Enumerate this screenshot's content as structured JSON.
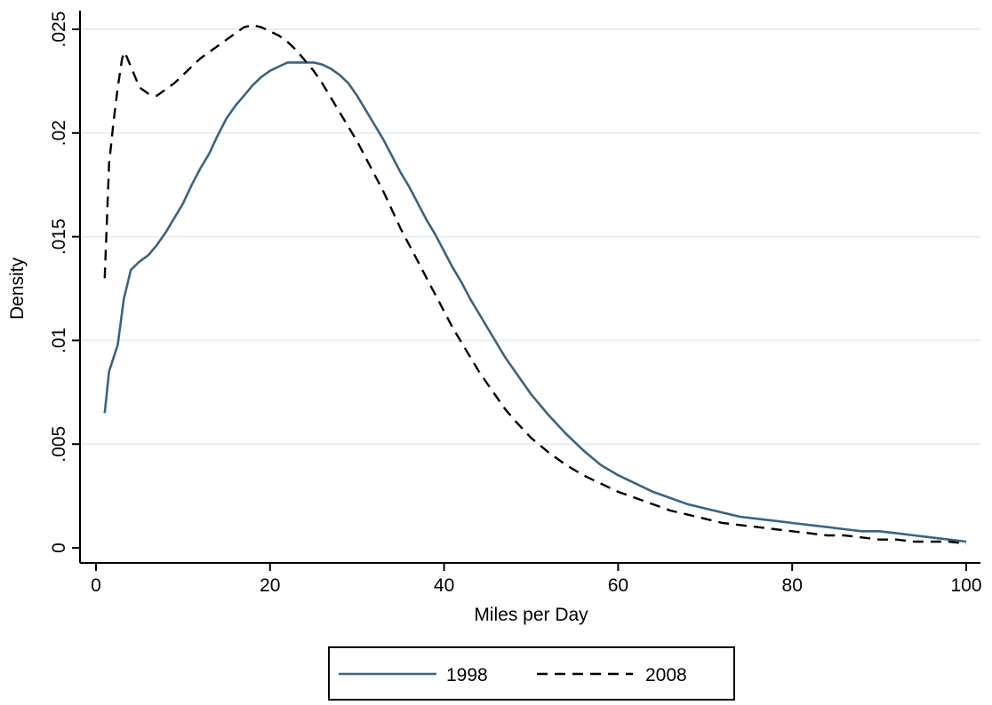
{
  "chart_data": {
    "type": "line",
    "xlabel": "Miles per Day",
    "ylabel": "Density",
    "xlim": [
      0,
      100
    ],
    "ylim": [
      0,
      0.025
    ],
    "x_ticks": [
      0,
      20,
      40,
      60,
      80,
      100
    ],
    "x_tick_labels": [
      "0",
      "20",
      "40",
      "60",
      "80",
      "100"
    ],
    "y_ticks": [
      0,
      0.005,
      0.01,
      0.015,
      0.02,
      0.025
    ],
    "y_tick_labels": [
      "0",
      ".005",
      ".01",
      ".015",
      ".02",
      ".025"
    ],
    "grid": "horizontal",
    "legend_position": "bottom",
    "series": [
      {
        "name": "1998",
        "color": "#3a6384",
        "style": "solid",
        "points": [
          [
            1,
            0.0065
          ],
          [
            1.5,
            0.0085
          ],
          [
            2.5,
            0.0098
          ],
          [
            3.2,
            0.012
          ],
          [
            4,
            0.0134
          ],
          [
            5,
            0.0138
          ],
          [
            6,
            0.0141
          ],
          [
            7,
            0.0146
          ],
          [
            8,
            0.0152
          ],
          [
            9,
            0.0159
          ],
          [
            10,
            0.0166
          ],
          [
            11,
            0.0175
          ],
          [
            12,
            0.0183
          ],
          [
            13,
            0.019
          ],
          [
            14,
            0.0199
          ],
          [
            15,
            0.0207
          ],
          [
            16,
            0.0213
          ],
          [
            17,
            0.0218
          ],
          [
            18,
            0.0223
          ],
          [
            19,
            0.0227
          ],
          [
            20,
            0.023
          ],
          [
            21,
            0.0232
          ],
          [
            22,
            0.0234
          ],
          [
            23,
            0.0234
          ],
          [
            24,
            0.0234
          ],
          [
            25,
            0.0234
          ],
          [
            26,
            0.0233
          ],
          [
            27,
            0.0231
          ],
          [
            28,
            0.0228
          ],
          [
            29,
            0.0224
          ],
          [
            30,
            0.0218
          ],
          [
            31,
            0.0211
          ],
          [
            32,
            0.0204
          ],
          [
            33,
            0.0197
          ],
          [
            34,
            0.0189
          ],
          [
            35,
            0.0181
          ],
          [
            36,
            0.0174
          ],
          [
            37,
            0.0166
          ],
          [
            38,
            0.0158
          ],
          [
            39,
            0.0151
          ],
          [
            40,
            0.0143
          ],
          [
            41,
            0.0135
          ],
          [
            42,
            0.0128
          ],
          [
            43,
            0.012
          ],
          [
            44,
            0.0113
          ],
          [
            45,
            0.0106
          ],
          [
            46,
            0.0099
          ],
          [
            47,
            0.0092
          ],
          [
            48,
            0.0086
          ],
          [
            49,
            0.008
          ],
          [
            50,
            0.0074
          ],
          [
            52,
            0.0064
          ],
          [
            54,
            0.0055
          ],
          [
            56,
            0.0047
          ],
          [
            58,
            0.004
          ],
          [
            60,
            0.0035
          ],
          [
            62,
            0.0031
          ],
          [
            64,
            0.0027
          ],
          [
            66,
            0.0024
          ],
          [
            68,
            0.0021
          ],
          [
            70,
            0.0019
          ],
          [
            72,
            0.0017
          ],
          [
            74,
            0.0015
          ],
          [
            76,
            0.0014
          ],
          [
            78,
            0.0013
          ],
          [
            80,
            0.0012
          ],
          [
            82,
            0.0011
          ],
          [
            84,
            0.001
          ],
          [
            86,
            0.0009
          ],
          [
            88,
            0.0008
          ],
          [
            90,
            0.0008
          ],
          [
            92,
            0.0007
          ],
          [
            94,
            0.0006
          ],
          [
            96,
            0.0005
          ],
          [
            98,
            0.0004
          ],
          [
            100,
            0.0003
          ]
        ]
      },
      {
        "name": "2008",
        "color": "#000000",
        "style": "dashed",
        "points": [
          [
            1,
            0.013
          ],
          [
            1.5,
            0.0185
          ],
          [
            2,
            0.0205
          ],
          [
            2.5,
            0.0222
          ],
          [
            3,
            0.0236
          ],
          [
            3.3,
            0.0239
          ],
          [
            4,
            0.0232
          ],
          [
            5,
            0.0222
          ],
          [
            6,
            0.0219
          ],
          [
            7,
            0.0218
          ],
          [
            8,
            0.0221
          ],
          [
            9,
            0.0224
          ],
          [
            10,
            0.0228
          ],
          [
            11,
            0.0232
          ],
          [
            12,
            0.0236
          ],
          [
            13,
            0.0239
          ],
          [
            14,
            0.0242
          ],
          [
            15,
            0.0245
          ],
          [
            16,
            0.0248
          ],
          [
            17,
            0.0251
          ],
          [
            18,
            0.0252
          ],
          [
            19,
            0.0251
          ],
          [
            20,
            0.0249
          ],
          [
            21,
            0.0247
          ],
          [
            22,
            0.0244
          ],
          [
            23,
            0.024
          ],
          [
            24,
            0.0235
          ],
          [
            25,
            0.023
          ],
          [
            26,
            0.0224
          ],
          [
            27,
            0.0217
          ],
          [
            28,
            0.021
          ],
          [
            29,
            0.0203
          ],
          [
            30,
            0.0196
          ],
          [
            31,
            0.0188
          ],
          [
            32,
            0.018
          ],
          [
            33,
            0.0172
          ],
          [
            34,
            0.0163
          ],
          [
            35,
            0.0154
          ],
          [
            36,
            0.0146
          ],
          [
            37,
            0.0138
          ],
          [
            38,
            0.013
          ],
          [
            39,
            0.0122
          ],
          [
            40,
            0.0114
          ],
          [
            41,
            0.0106
          ],
          [
            42,
            0.0099
          ],
          [
            43,
            0.0092
          ],
          [
            44,
            0.0085
          ],
          [
            45,
            0.0079
          ],
          [
            46,
            0.0073
          ],
          [
            47,
            0.0067
          ],
          [
            48,
            0.0062
          ],
          [
            50,
            0.0053
          ],
          [
            52,
            0.0046
          ],
          [
            54,
            0.004
          ],
          [
            56,
            0.0035
          ],
          [
            58,
            0.0031
          ],
          [
            60,
            0.0027
          ],
          [
            62,
            0.0024
          ],
          [
            64,
            0.0021
          ],
          [
            66,
            0.0018
          ],
          [
            68,
            0.0016
          ],
          [
            70,
            0.0014
          ],
          [
            72,
            0.0012
          ],
          [
            74,
            0.0011
          ],
          [
            76,
            0.001
          ],
          [
            78,
            0.0009
          ],
          [
            80,
            0.0008
          ],
          [
            82,
            0.0007
          ],
          [
            84,
            0.0006
          ],
          [
            86,
            0.0006
          ],
          [
            88,
            0.0005
          ],
          [
            90,
            0.0004
          ],
          [
            92,
            0.0004
          ],
          [
            94,
            0.0003
          ],
          [
            96,
            0.0003
          ],
          [
            98,
            0.0003
          ],
          [
            100,
            0.0002
          ]
        ]
      }
    ]
  }
}
